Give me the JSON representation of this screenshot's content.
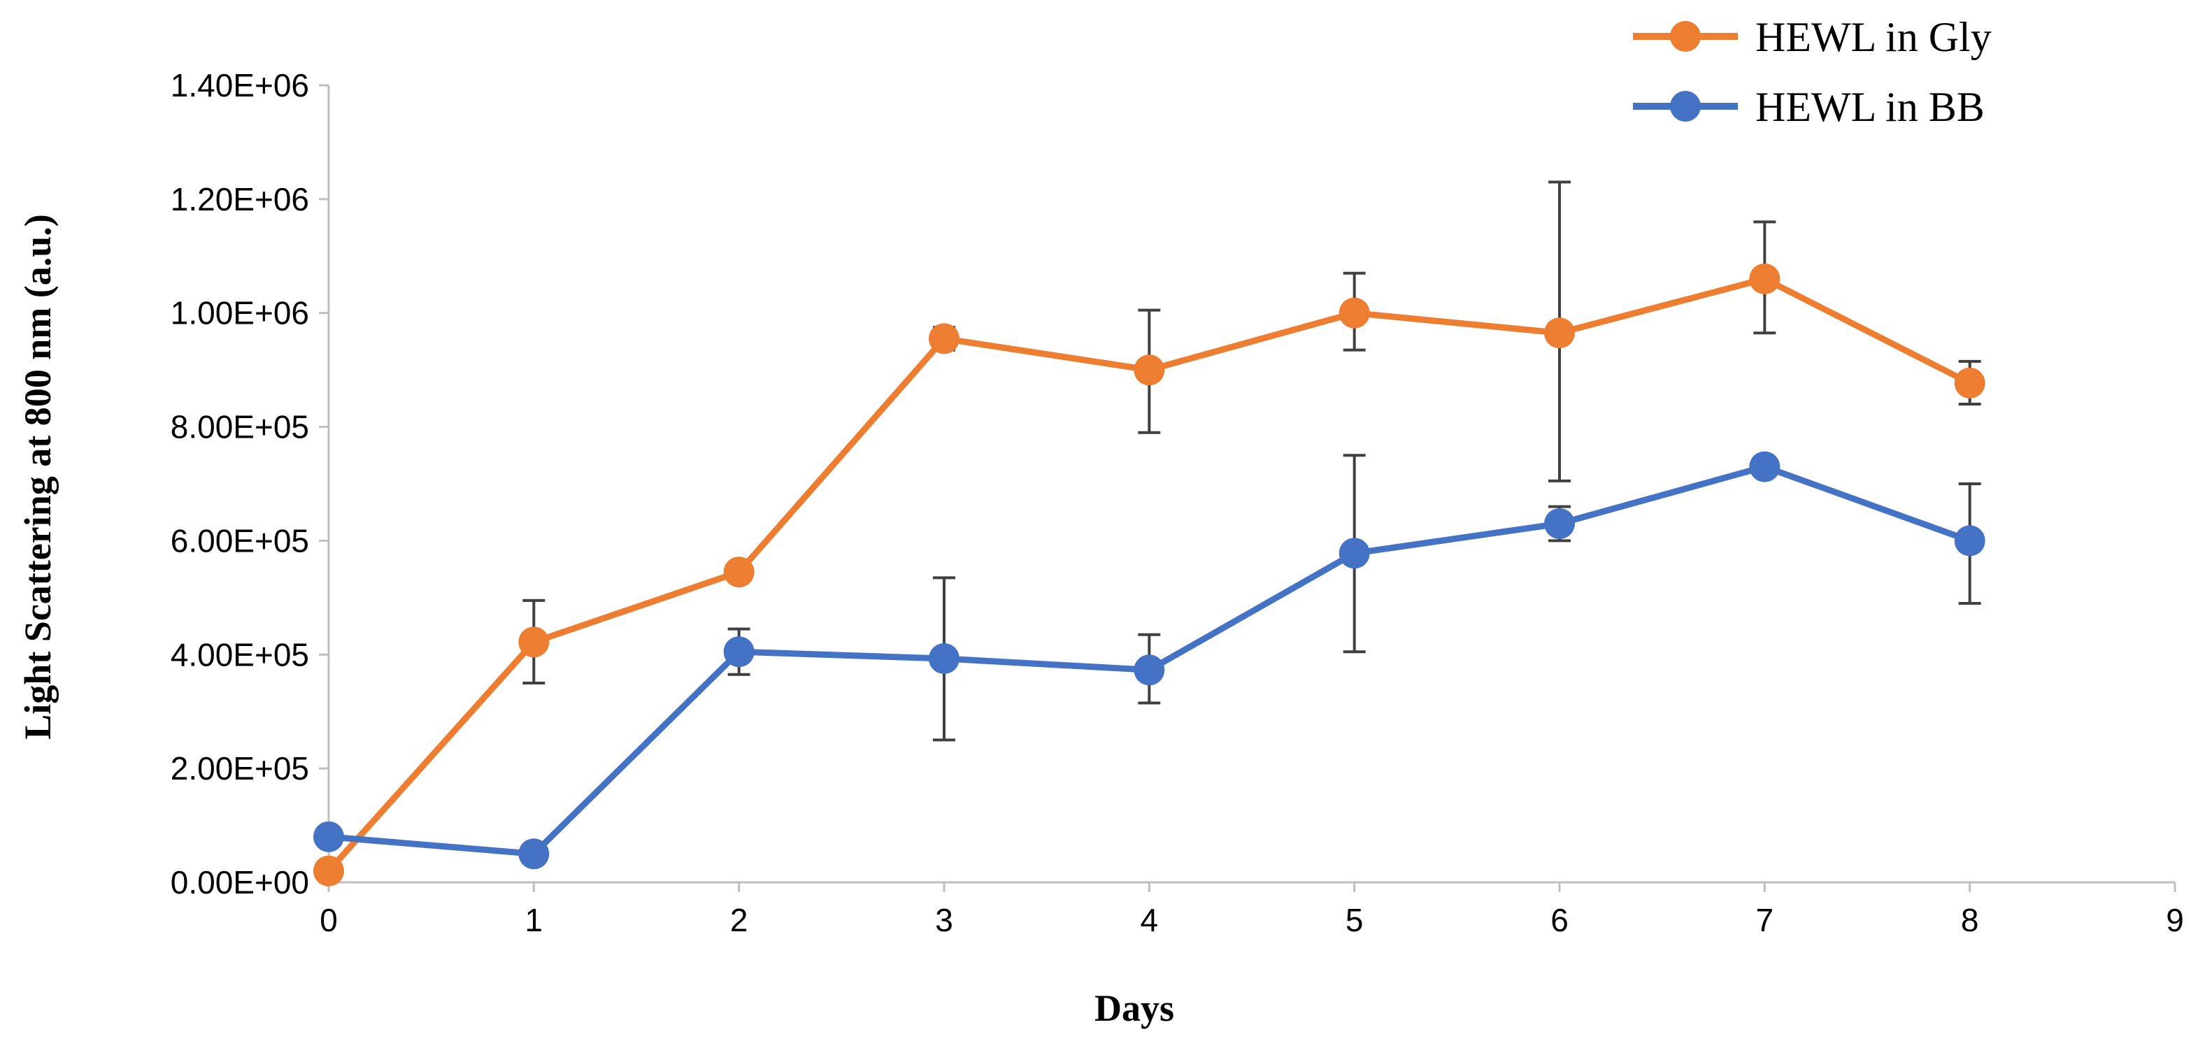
{
  "chart_data": {
    "type": "line",
    "title": "",
    "xlabel": "Days",
    "ylabel": "Light Scattering at 800 nm (a.u.)",
    "xlim": [
      0,
      9
    ],
    "ylim": [
      0,
      1400000
    ],
    "x_ticks": [
      0,
      1,
      2,
      3,
      4,
      5,
      6,
      7,
      8,
      9
    ],
    "y_ticks": [
      0,
      200000,
      400000,
      600000,
      800000,
      1000000,
      1200000,
      1400000
    ],
    "x_tick_labels": [
      "0",
      "1",
      "2",
      "3",
      "4",
      "5",
      "6",
      "7",
      "8",
      "9"
    ],
    "y_tick_labels": [
      "0.00E+00",
      "2.00E+05",
      "4.00E+05",
      "6.00E+05",
      "8.00E+05",
      "1.00E+06",
      "1.20E+06",
      "1.40E+06"
    ],
    "grid": false,
    "legend_position": "top-right",
    "series": [
      {
        "name": "HEWL in Gly",
        "color": "#ED7D31",
        "x": [
          0,
          1,
          2,
          3,
          4,
          5,
          6,
          7,
          8
        ],
        "values": [
          20000,
          422000,
          545000,
          955000,
          900000,
          1000000,
          965000,
          1060000,
          877000
        ],
        "error_low": [
          null,
          350000,
          null,
          935000,
          790000,
          935000,
          705000,
          965000,
          840000
        ],
        "error_high": [
          null,
          495000,
          null,
          975000,
          1005000,
          1070000,
          1230000,
          1160000,
          915000
        ]
      },
      {
        "name": "HEWL in BB",
        "color": "#4472C4",
        "x": [
          0,
          1,
          2,
          3,
          4,
          5,
          6,
          7,
          8
        ],
        "values": [
          80000,
          50000,
          405000,
          393000,
          373000,
          578000,
          630000,
          730000,
          600000
        ],
        "error_low": [
          null,
          null,
          365000,
          250000,
          315000,
          405000,
          600000,
          null,
          490000
        ],
        "error_high": [
          null,
          null,
          445000,
          535000,
          435000,
          750000,
          660000,
          null,
          700000
        ]
      }
    ]
  }
}
